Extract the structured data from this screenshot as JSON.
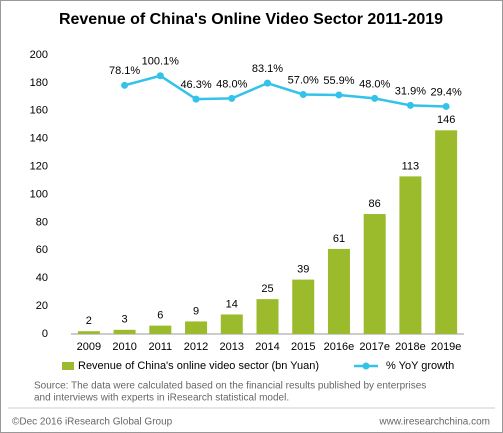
{
  "chart_data": {
    "type": "bar",
    "title": "Revenue of China's Online  Video Sector 2011-2019",
    "categories": [
      "2009",
      "2010",
      "2011",
      "2012",
      "2013",
      "2014",
      "2015",
      "2016e",
      "2017e",
      "2018e",
      "2019e"
    ],
    "series": [
      {
        "name": "Revenue of China's online video sector (bn Yuan)",
        "type": "bar",
        "color": "#9bbb2d",
        "values": [
          2,
          3,
          6,
          9,
          14,
          25,
          39,
          61,
          86,
          113,
          146
        ]
      },
      {
        "name": "% YoY growth",
        "type": "line",
        "axis": "y2",
        "color": "#33c3ea",
        "values": [
          null,
          78.1,
          100.1,
          46.3,
          48.0,
          83.1,
          57.0,
          55.9,
          48.0,
          31.9,
          29.4
        ],
        "value_labels": [
          null,
          "78.1%",
          "100.1%",
          "46.3%",
          "48.0%",
          "83.1%",
          "57.0%",
          "55.9%",
          "48.0%",
          "31.9%",
          "29.4%"
        ]
      }
    ],
    "ylim": [
      0,
      200
    ],
    "yticks": [
      0,
      20,
      40,
      60,
      80,
      100,
      120,
      140,
      160,
      180,
      200
    ],
    "y2lim": [
      -495,
      148
    ],
    "grid": false
  },
  "source": [
    "Source: The data  were calculated based on the financial results published by enterprises",
    "and interviews with experts in iResearch statistical model."
  ],
  "footer": {
    "left": "©Dec 2016 iResearch Global Group",
    "right": "www.iresearchchina.com"
  }
}
